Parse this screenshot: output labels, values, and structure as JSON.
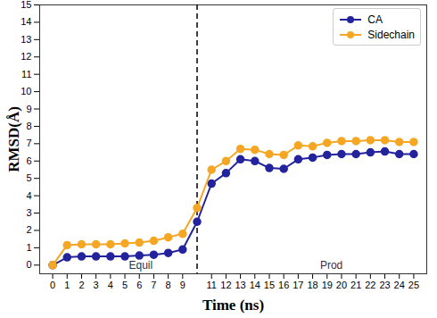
{
  "chart_data": {
    "type": "line",
    "x_label": "Time (ns)",
    "y_label": "RMSD(Å)",
    "x": [
      0,
      1,
      2,
      3,
      4,
      5,
      6,
      7,
      8,
      9,
      10,
      11,
      12,
      13,
      14,
      15,
      16,
      17,
      18,
      19,
      20,
      21,
      22,
      23,
      24,
      25
    ],
    "series": [
      {
        "name": "CA",
        "color": "#23239e",
        "marker": "circle",
        "line_style": "solid",
        "values": [
          0,
          0.45,
          0.5,
          0.5,
          0.5,
          0.5,
          0.55,
          0.6,
          0.7,
          0.9,
          2.5,
          4.7,
          5.3,
          6.1,
          6.0,
          5.6,
          5.55,
          6.1,
          6.2,
          6.35,
          6.4,
          6.4,
          6.5,
          6.55,
          6.4,
          6.4
        ]
      },
      {
        "name": "Sidechain",
        "color": "#f5a623",
        "marker": "circle",
        "line_style": "solid",
        "values": [
          0,
          1.15,
          1.2,
          1.2,
          1.2,
          1.25,
          1.3,
          1.4,
          1.6,
          1.8,
          3.3,
          5.5,
          6.0,
          6.7,
          6.65,
          6.4,
          6.35,
          6.9,
          6.85,
          7.05,
          7.15,
          7.15,
          7.2,
          7.2,
          7.1,
          7.1
        ]
      }
    ],
    "xlim": [
      -0.9,
      25.9
    ],
    "xticks": [
      0,
      1,
      2,
      3,
      4,
      5,
      6,
      7,
      8,
      9,
      11,
      12,
      13,
      14,
      15,
      16,
      17,
      18,
      19,
      20,
      21,
      22,
      23,
      24,
      25
    ],
    "ylim": [
      -0.5,
      15
    ],
    "yticks": [
      0,
      1,
      2,
      3,
      4,
      5,
      6,
      7,
      8,
      9,
      10,
      11,
      12,
      13,
      14,
      15
    ],
    "vline": 10,
    "annotations": [
      {
        "text": "Equil",
        "x": 6.1,
        "y": 0
      },
      {
        "text": "Prod",
        "x": 19.3,
        "y": 0
      }
    ],
    "legend": "top-right",
    "grid": false
  }
}
